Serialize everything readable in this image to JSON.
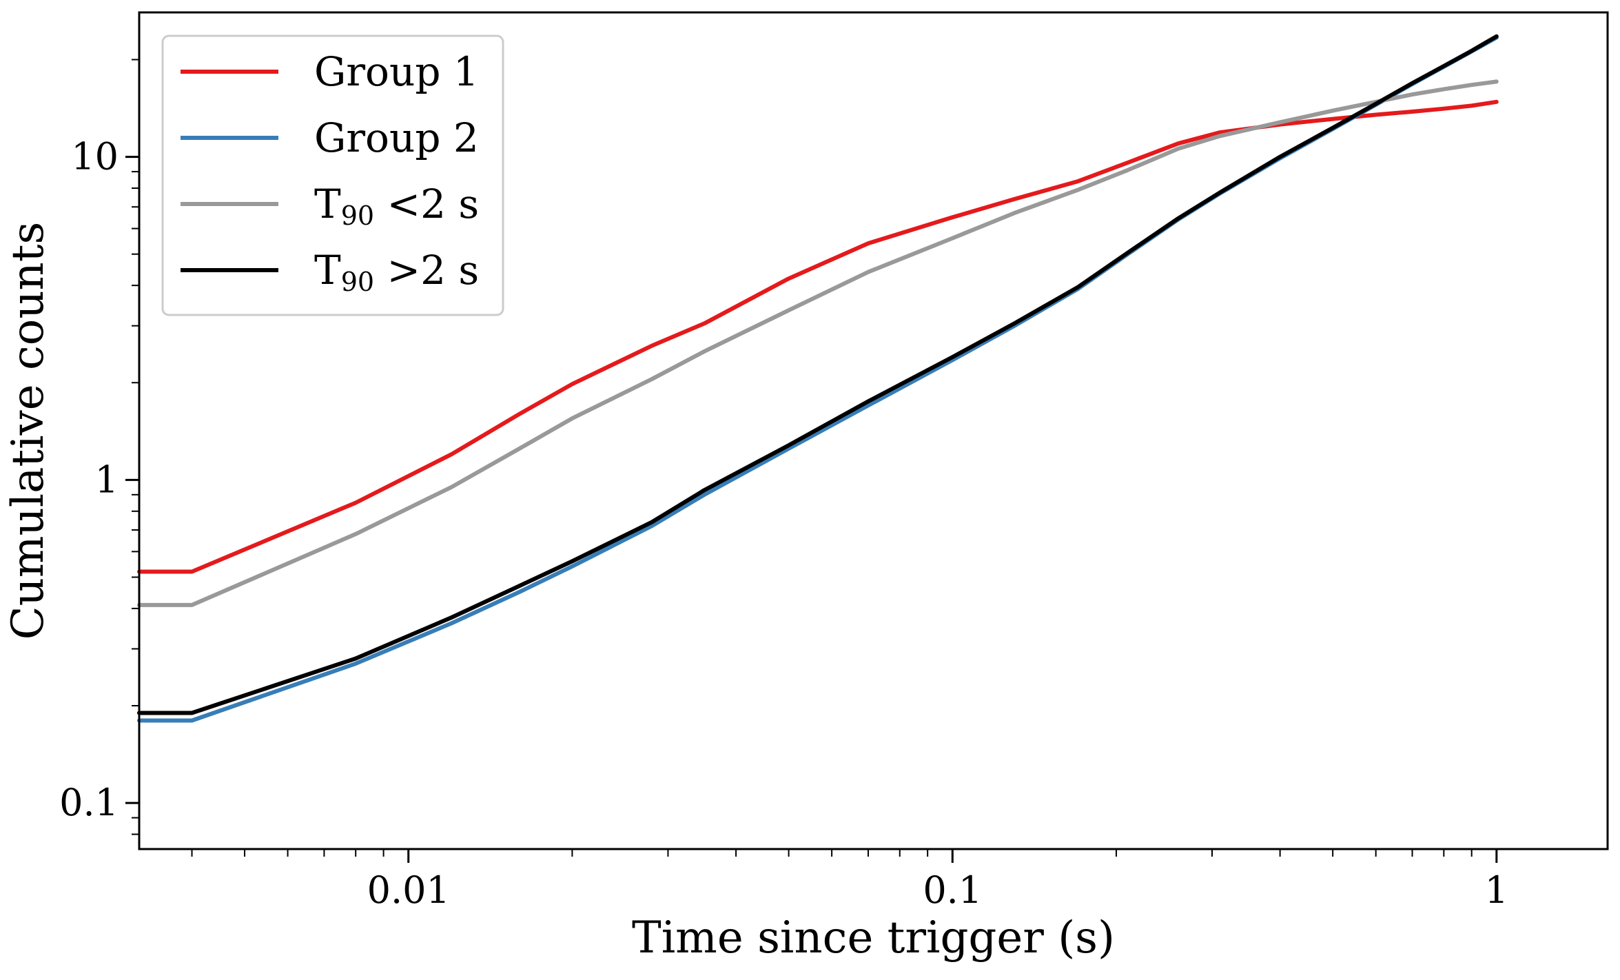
{
  "chart_data": {
    "type": "line",
    "xscale": "log",
    "yscale": "log",
    "xlabel": "Time since trigger (s)",
    "ylabel": "Cumulative counts",
    "xlim": [
      0.0032,
      1.6
    ],
    "ylim": [
      0.072,
      28
    ],
    "xticks": [
      {
        "value": 0.01,
        "label": "0.01"
      },
      {
        "value": 0.1,
        "label": "0.1"
      },
      {
        "value": 1,
        "label": "1"
      }
    ],
    "yticks": [
      {
        "value": 0.1,
        "label": "0.1"
      },
      {
        "value": 1,
        "label": "1"
      },
      {
        "value": 10,
        "label": "10"
      }
    ],
    "legend_position": "top-left",
    "series": [
      {
        "name": "Group 1",
        "legend": {
          "main": "Group 1",
          "sub": "",
          "rest": ""
        },
        "color": "#e41a1c",
        "x": [
          0.0032,
          0.004,
          0.008,
          0.012,
          0.016,
          0.02,
          0.028,
          0.035,
          0.05,
          0.07,
          0.1,
          0.13,
          0.17,
          0.21,
          0.26,
          0.31,
          0.4,
          0.5,
          0.6,
          0.7,
          0.8,
          0.9,
          1.0
        ],
        "y": [
          0.52,
          0.52,
          0.85,
          1.2,
          1.6,
          1.98,
          2.6,
          3.05,
          4.2,
          5.4,
          6.5,
          7.4,
          8.4,
          9.6,
          11.0,
          11.9,
          12.6,
          13.1,
          13.5,
          13.8,
          14.1,
          14.4,
          14.8
        ]
      },
      {
        "name": "Group 2",
        "legend": {
          "main": "Group 2",
          "sub": "",
          "rest": ""
        },
        "color": "#377eb8",
        "x": [
          0.0032,
          0.004,
          0.008,
          0.012,
          0.016,
          0.02,
          0.028,
          0.035,
          0.05,
          0.07,
          0.1,
          0.13,
          0.17,
          0.21,
          0.26,
          0.31,
          0.4,
          0.5,
          0.6,
          0.7,
          0.8,
          0.9,
          1.0
        ],
        "y": [
          0.18,
          0.18,
          0.27,
          0.36,
          0.45,
          0.54,
          0.72,
          0.9,
          1.25,
          1.7,
          2.35,
          3.0,
          3.9,
          5.0,
          6.4,
          7.7,
          9.9,
          12.2,
          14.5,
          16.8,
          19.0,
          21.2,
          23.4
        ]
      },
      {
        "name": "T90 <2 s",
        "legend": {
          "main": "T",
          "sub": "90",
          "rest": " <2 s"
        },
        "color": "#999999",
        "x": [
          0.0032,
          0.004,
          0.008,
          0.012,
          0.016,
          0.02,
          0.028,
          0.035,
          0.05,
          0.07,
          0.1,
          0.13,
          0.17,
          0.21,
          0.26,
          0.31,
          0.4,
          0.5,
          0.6,
          0.7,
          0.8,
          0.9,
          1.0
        ],
        "y": [
          0.41,
          0.41,
          0.68,
          0.95,
          1.25,
          1.55,
          2.05,
          2.5,
          3.35,
          4.4,
          5.6,
          6.7,
          7.9,
          9.1,
          10.6,
          11.6,
          12.8,
          13.9,
          14.8,
          15.6,
          16.2,
          16.7,
          17.1
        ]
      },
      {
        "name": "T90 >2 s",
        "legend": {
          "main": "T",
          "sub": "90",
          "rest": " >2 s"
        },
        "color": "#000000",
        "x": [
          0.0032,
          0.004,
          0.008,
          0.012,
          0.016,
          0.02,
          0.028,
          0.035,
          0.05,
          0.07,
          0.1,
          0.13,
          0.17,
          0.21,
          0.26,
          0.31,
          0.4,
          0.5,
          0.6,
          0.7,
          0.8,
          0.9,
          1.0
        ],
        "y": [
          0.19,
          0.19,
          0.28,
          0.375,
          0.47,
          0.56,
          0.74,
          0.93,
          1.28,
          1.75,
          2.4,
          3.05,
          3.95,
          5.05,
          6.45,
          7.75,
          10.0,
          12.3,
          14.6,
          16.9,
          19.1,
          21.3,
          23.6
        ]
      }
    ]
  }
}
